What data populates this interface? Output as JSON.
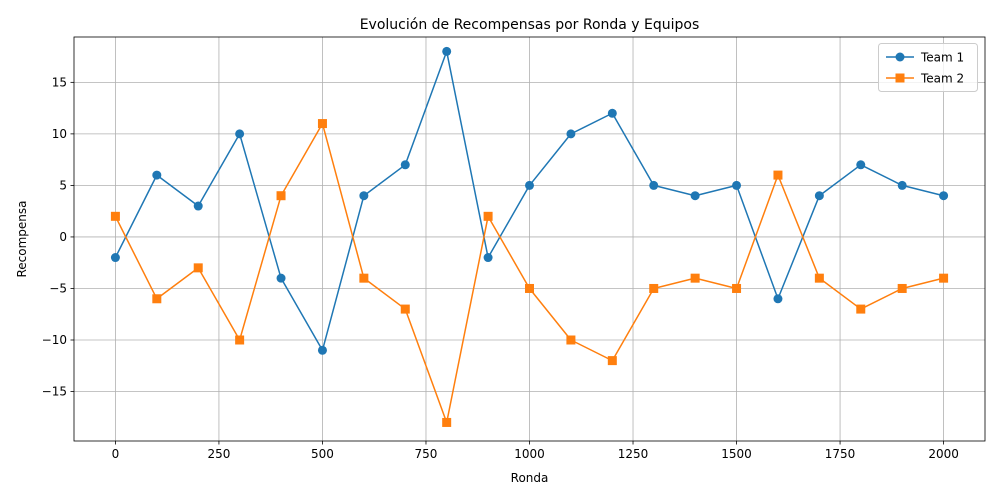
{
  "chart_data": {
    "type": "line",
    "title": "Evolución de Recompensas por Ronda y Equipos",
    "xlabel": "Ronda",
    "ylabel": "Recompensa",
    "x": [
      0,
      100,
      200,
      300,
      400,
      500,
      600,
      700,
      800,
      900,
      1000,
      1100,
      1200,
      1300,
      1400,
      1500,
      1600,
      1700,
      1800,
      1900,
      2000
    ],
    "series": [
      {
        "name": "Team 1",
        "color": "#1f77b4",
        "marker": "circle",
        "values": [
          -2,
          6,
          3,
          10,
          -4,
          -11,
          4,
          7,
          18,
          -2,
          5,
          10,
          12,
          5,
          4,
          5,
          -6,
          4,
          7,
          5,
          4
        ]
      },
      {
        "name": "Team 2",
        "color": "#ff7f0e",
        "marker": "square",
        "values": [
          2,
          -6,
          -3,
          -10,
          4,
          11,
          -4,
          -7,
          -18,
          2,
          -5,
          -10,
          -12,
          -5,
          -4,
          -5,
          6,
          -4,
          -7,
          -5,
          -4
        ]
      }
    ],
    "xlim": [
      -100,
      2100
    ],
    "ylim": [
      -19.8,
      19.4
    ],
    "xticks": [
      0,
      250,
      500,
      750,
      1000,
      1250,
      1500,
      1750,
      2000
    ],
    "xtick_labels": [
      "0",
      "250",
      "500",
      "750",
      "1000",
      "1250",
      "1500",
      "1750",
      "2000"
    ],
    "yticks": [
      -15,
      -10,
      -5,
      0,
      5,
      10,
      15
    ],
    "ytick_labels": [
      "−15",
      "−10",
      "−5",
      "0",
      "5",
      "10",
      "15"
    ],
    "grid": true,
    "legend_position": "top-right"
  }
}
